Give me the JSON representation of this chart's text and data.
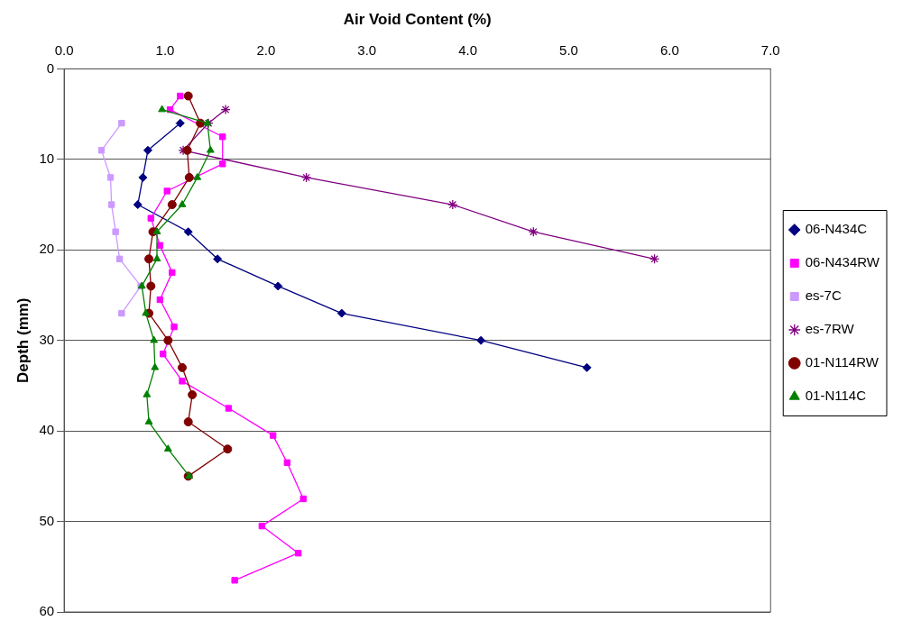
{
  "chart_data": {
    "type": "line",
    "xlabel": "Air Void Content (%)",
    "ylabel": "Depth (mm)",
    "xlim": [
      0,
      7
    ],
    "xticks": [
      {
        "value": 0,
        "label": "0.0"
      },
      {
        "value": 1,
        "label": "1.0"
      },
      {
        "value": 2,
        "label": "2.0"
      },
      {
        "value": 3,
        "label": "3.0"
      },
      {
        "value": 4,
        "label": "4.0"
      },
      {
        "value": 5,
        "label": "5.0"
      },
      {
        "value": 6,
        "label": "6.0"
      },
      {
        "value": 7,
        "label": "7.0"
      }
    ],
    "ylim": [
      60,
      0
    ],
    "yticks": [
      0,
      10,
      20,
      30,
      40,
      50,
      60
    ],
    "grid": "y",
    "legend": "right",
    "line_style": "solid",
    "series": [
      {
        "name": "06-N434C",
        "color": "#000080",
        "marker": "diamond",
        "x": [
          1.15,
          0.83,
          0.78,
          0.73,
          1.23,
          1.52,
          2.12,
          2.75,
          4.13,
          5.18
        ],
        "values": [
          6,
          9,
          12,
          15,
          18,
          21,
          24,
          27,
          30,
          33
        ]
      },
      {
        "name": "06-N434RW",
        "color": "#ff00ff",
        "marker": "square",
        "x": [
          1.15,
          1.05,
          1.57,
          1.57,
          1.02,
          0.86,
          0.95,
          1.07,
          0.95,
          1.09,
          0.98,
          1.17,
          1.63,
          2.07,
          2.21,
          2.37,
          1.96,
          2.32,
          1.69
        ],
        "values": [
          3,
          4.5,
          7.5,
          10.5,
          13.5,
          16.5,
          19.5,
          22.5,
          25.5,
          28.5,
          31.5,
          34.5,
          37.5,
          40.5,
          43.5,
          47.5,
          50.5,
          53.5,
          56.5
        ]
      },
      {
        "name": "es-7C",
        "color": "#cc99ff",
        "marker": "square",
        "x": [
          0.57,
          0.37,
          0.46,
          0.47,
          0.51,
          0.55,
          0.76,
          0.57
        ],
        "values": [
          6,
          9,
          12,
          15,
          18,
          21,
          24,
          27
        ]
      },
      {
        "name": "es-7RW",
        "color": "#800080",
        "marker": "cross",
        "x": [
          1.6,
          1.43,
          1.18,
          2.4,
          3.85,
          4.65,
          5.85
        ],
        "values": [
          4.5,
          6,
          9,
          12,
          15,
          18,
          21
        ]
      },
      {
        "name": "01-N114RW",
        "color": "#800000",
        "marker": "circle",
        "x": [
          1.23,
          1.35,
          1.22,
          1.24,
          1.07,
          0.88,
          0.84,
          0.86,
          0.84,
          1.03,
          1.17,
          1.27,
          1.23,
          1.62,
          1.23
        ],
        "values": [
          3,
          6,
          9,
          12,
          15,
          18,
          21,
          24,
          27,
          30,
          33,
          36,
          39,
          42,
          45
        ]
      },
      {
        "name": "01-N114C",
        "color": "#008000",
        "marker": "triangle",
        "x": [
          0.97,
          1.42,
          1.45,
          1.32,
          1.17,
          0.92,
          0.92,
          0.77,
          0.81,
          0.89,
          0.9,
          0.82,
          0.84,
          1.03,
          1.24
        ],
        "values": [
          4.5,
          6,
          9,
          12,
          15,
          18,
          21,
          24,
          27,
          30,
          33,
          36,
          39,
          42,
          45
        ]
      }
    ]
  }
}
